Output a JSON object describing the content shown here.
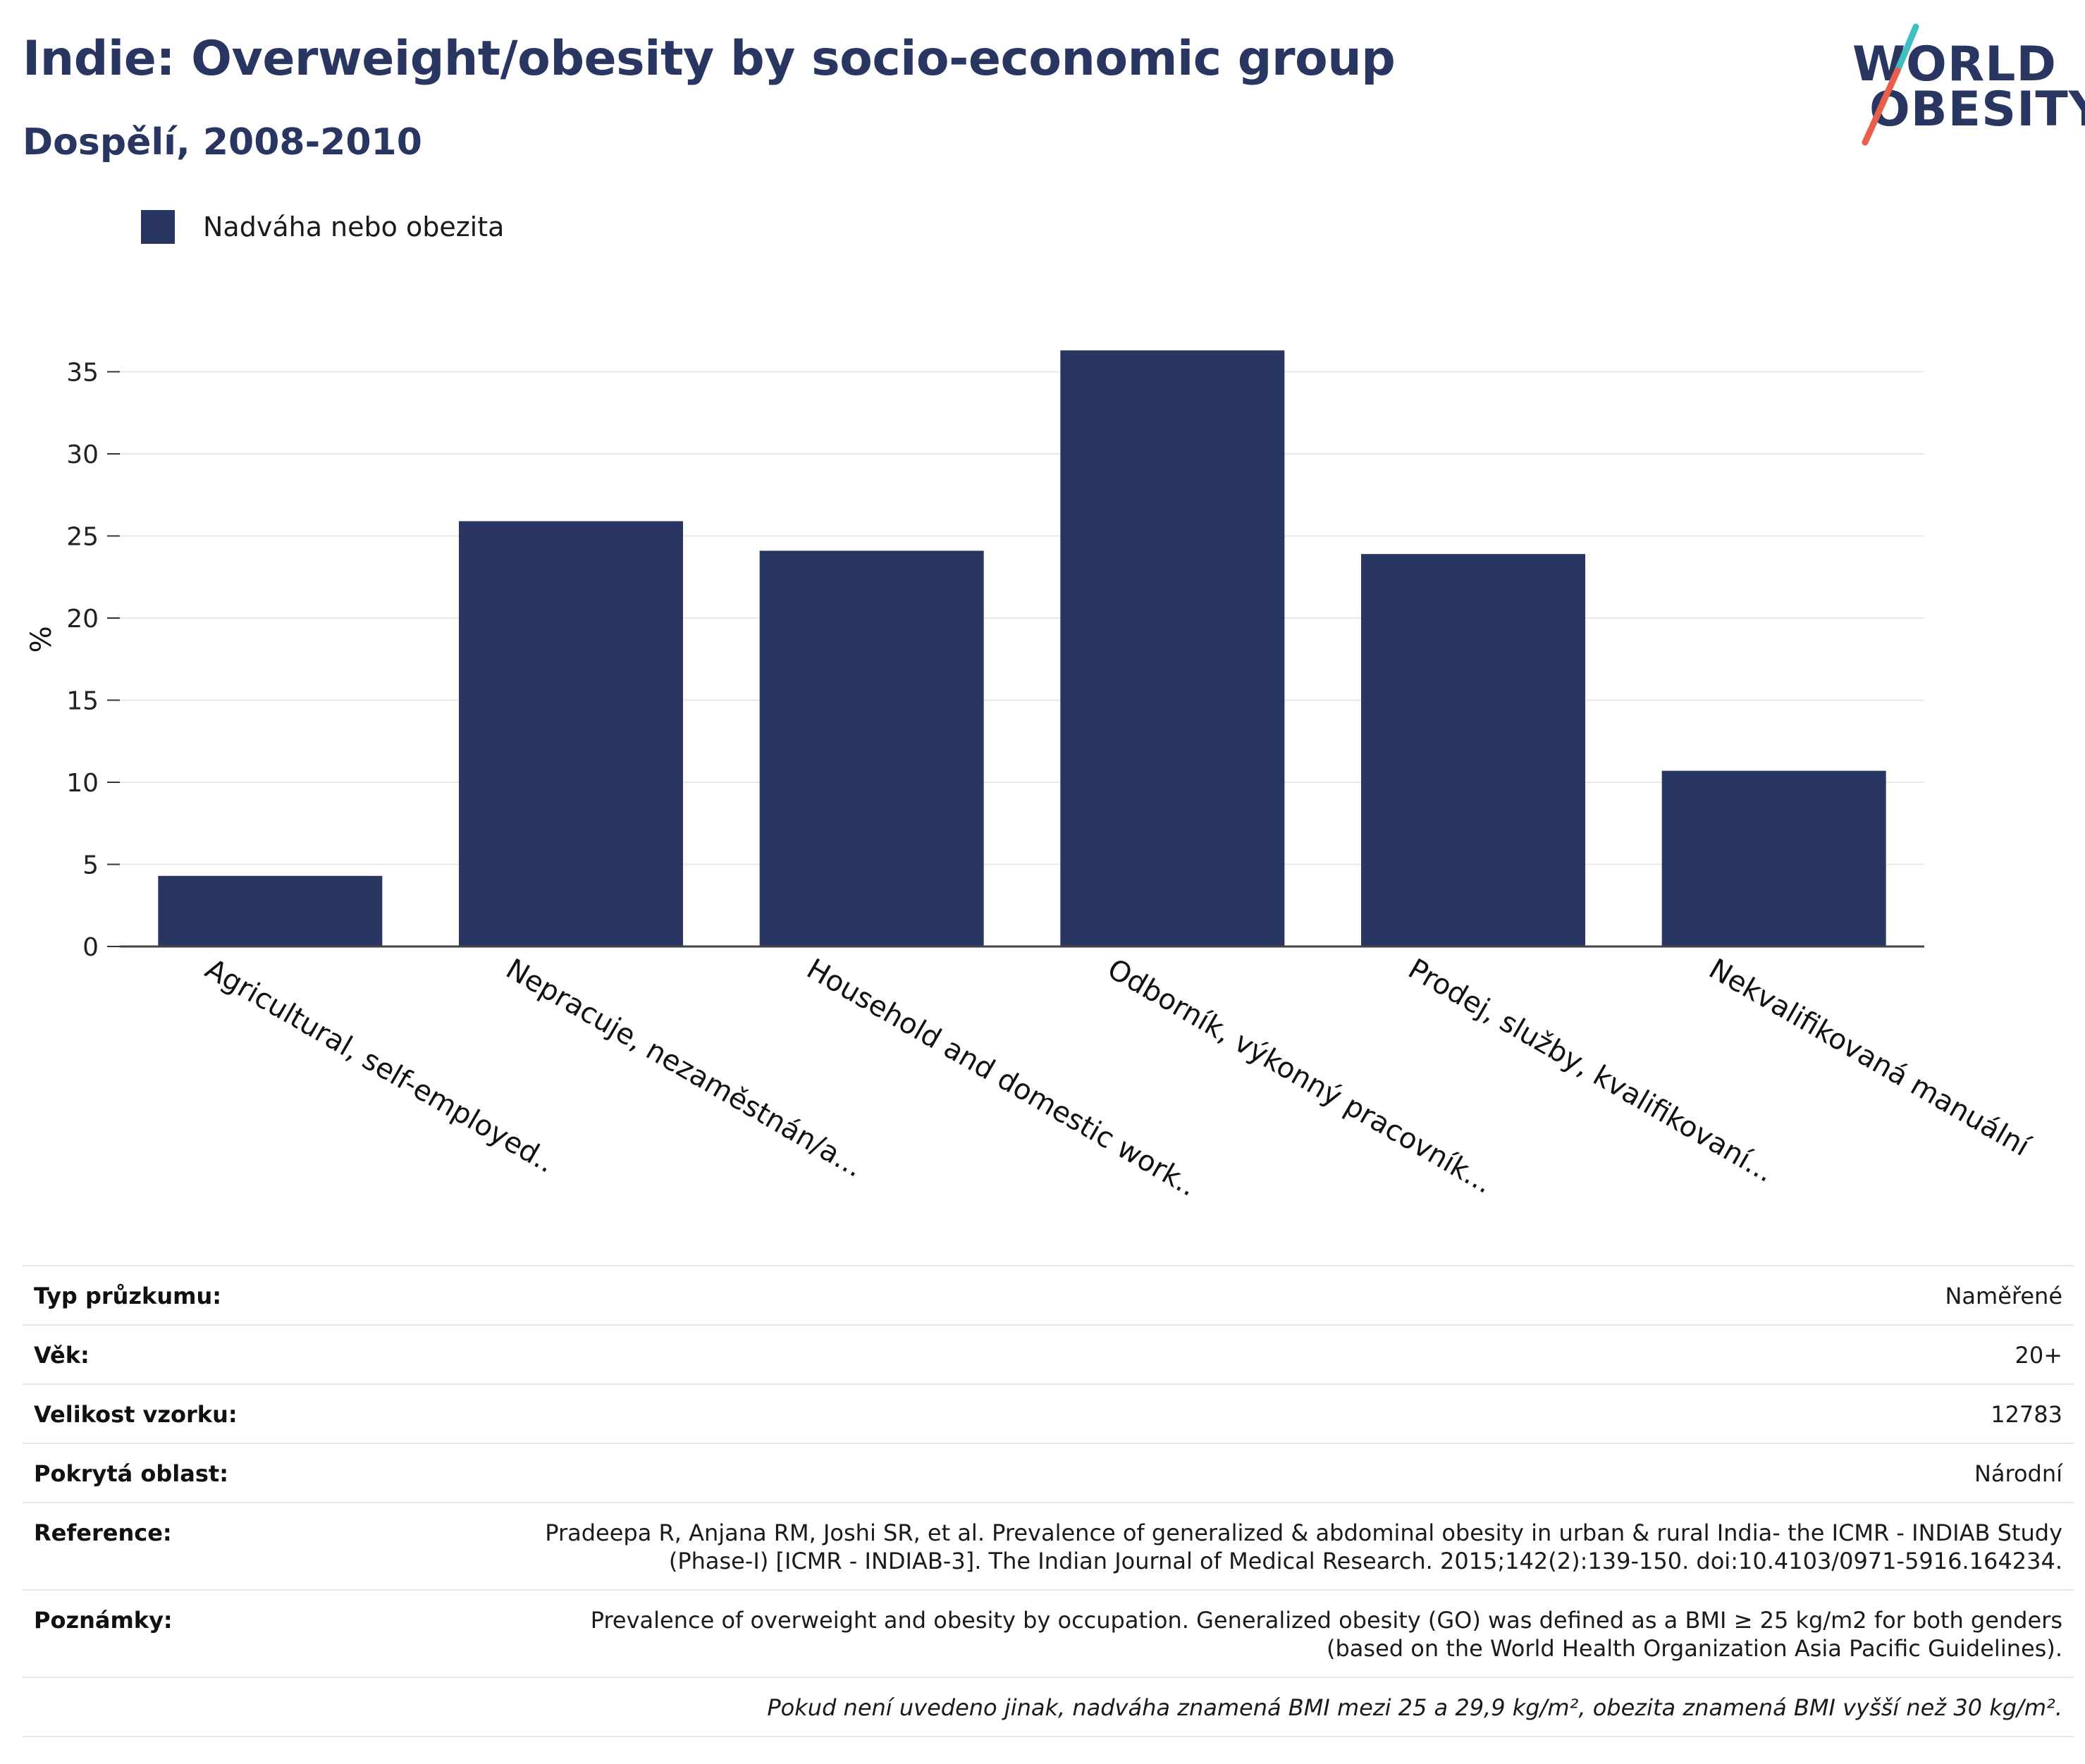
{
  "header": {
    "title": "Indie: Overweight/obesity by socio-economic group",
    "subtitle": "Dospělí, 2008-2010"
  },
  "logo": {
    "line1": "WORLD",
    "line2": "OBESITY"
  },
  "colors": {
    "bar": "#2a3662",
    "accent_red": "#e8604c",
    "accent_teal": "#3fbfbf"
  },
  "legend": {
    "label": "Nadváha nebo obezita"
  },
  "chart_data": {
    "type": "bar",
    "categories": [
      "Agricultural, self-employed..",
      "Nepracuje, nezaměstnán/a...",
      "Household and domestic work..",
      "Odborník, výkonný pracovník...",
      "Prodej, služby, kvalifikovaní...",
      "Nekvalifikovaná manuální"
    ],
    "series": [
      {
        "name": "Nadváha nebo obezita",
        "values": [
          4.3,
          25.9,
          24.1,
          36.3,
          23.9,
          10.7
        ]
      }
    ],
    "ylabel": "%",
    "yticks": [
      0,
      5,
      10,
      15,
      20,
      25,
      30,
      35
    ],
    "ylim": [
      0,
      37.5
    ],
    "grid": true,
    "legend_position": "top-left"
  },
  "meta": {
    "rows": [
      {
        "label": "Typ průzkumu:",
        "value": "Naměřené"
      },
      {
        "label": "Věk:",
        "value": "20+"
      },
      {
        "label": "Velikost vzorku:",
        "value": "12783"
      },
      {
        "label": "Pokrytá oblast:",
        "value": "Národní"
      },
      {
        "label": "Reference:",
        "value": "Pradeepa R, Anjana RM, Joshi SR, et al. Prevalence of generalized & abdominal obesity in urban & rural India- the ICMR - INDIAB Study (Phase-I) [ICMR - INDIAB-3]. The Indian Journal of Medical Research. 2015;142(2):139-150. doi:10.4103/0971-5916.164234."
      },
      {
        "label": "Poznámky:",
        "value": "Prevalence of overweight and obesity by occupation. Generalized obesity (GO) was defined as a BMI ≥ 25 kg/m2 for both genders (based on the World Health Organization Asia Pacific Guidelines)."
      }
    ],
    "footnote": "Pokud není uvedeno jinak, nadváha znamená BMI mezi 25 a 29,9 kg/m², obezita znamená BMI vyšší než 30 kg/m²."
  }
}
